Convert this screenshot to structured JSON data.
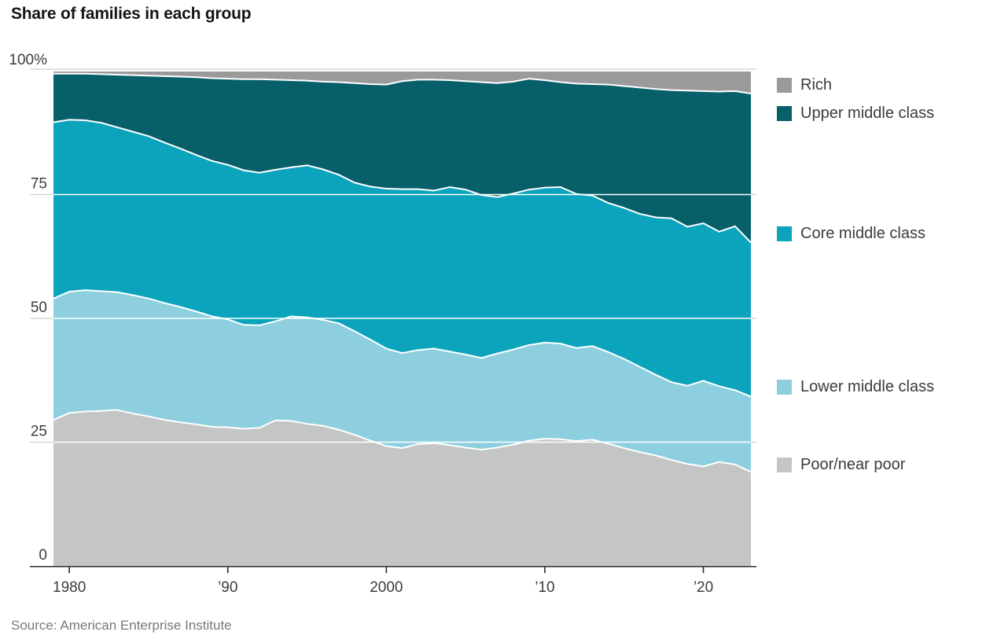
{
  "chart": {
    "title": "Share of families in each group",
    "source": "Source: American Enterprise Institute"
  },
  "chart_data": {
    "type": "area",
    "stacked": true,
    "title": "Share of families in each group",
    "xlabel": "",
    "ylabel": "",
    "unit": "percent of families",
    "ylim": [
      0,
      100
    ],
    "grid": true,
    "legend_position": "right",
    "x": [
      1979,
      1980,
      1981,
      1982,
      1983,
      1984,
      1985,
      1986,
      1987,
      1988,
      1989,
      1990,
      1991,
      1992,
      1993,
      1994,
      1995,
      1996,
      1997,
      1998,
      1999,
      2000,
      2001,
      2002,
      2003,
      2004,
      2005,
      2006,
      2007,
      2008,
      2009,
      2010,
      2011,
      2012,
      2013,
      2014,
      2015,
      2016,
      2017,
      2018,
      2019,
      2020,
      2021,
      2022,
      2023
    ],
    "series": [
      {
        "name": "Poor/near poor",
        "color": "#c4c5c5",
        "values": [
          29.5,
          30.9,
          31.2,
          31.3,
          31.5,
          30.8,
          30.2,
          29.5,
          29.0,
          28.6,
          28.1,
          28.0,
          27.7,
          27.9,
          29.4,
          29.3,
          28.7,
          28.3,
          27.5,
          26.5,
          25.3,
          24.2,
          23.8,
          24.6,
          24.8,
          24.4,
          23.9,
          23.5,
          23.9,
          24.5,
          25.3,
          25.7,
          25.6,
          25.2,
          25.5,
          24.7,
          23.8,
          23.0,
          22.3,
          21.4,
          20.6,
          20.1,
          21.0,
          20.5,
          19.0
        ]
      },
      {
        "name": "Lower middle class",
        "color": "#8dcfdf",
        "values": [
          24.5,
          24.5,
          24.5,
          24.2,
          23.8,
          23.9,
          23.8,
          23.6,
          23.3,
          22.8,
          22.3,
          21.8,
          21.0,
          20.7,
          20.0,
          21.1,
          21.5,
          21.4,
          21.5,
          20.9,
          20.4,
          19.7,
          19.2,
          19.0,
          19.1,
          18.9,
          18.8,
          18.5,
          19.0,
          19.2,
          19.3,
          19.4,
          19.3,
          18.8,
          18.9,
          18.5,
          18.0,
          17.2,
          16.3,
          15.7,
          15.8,
          17.3,
          15.3,
          15.0,
          15.2
        ]
      },
      {
        "name": "Core middle class",
        "color": "#0ba4bc",
        "values": [
          35.6,
          34.7,
          34.3,
          34.0,
          33.3,
          33.0,
          32.8,
          32.4,
          32.0,
          31.6,
          31.4,
          31.2,
          31.2,
          30.8,
          30.6,
          30.1,
          30.7,
          30.4,
          30.0,
          30.0,
          30.9,
          32.3,
          33.1,
          32.5,
          31.9,
          33.2,
          33.3,
          32.9,
          31.6,
          31.5,
          31.4,
          31.3,
          31.6,
          31.1,
          30.4,
          30.1,
          30.5,
          30.9,
          31.8,
          33.1,
          32.1,
          31.8,
          31.2,
          33.1,
          31.1
        ]
      },
      {
        "name": "Upper middle class",
        "color": "#075f69",
        "values": [
          9.8,
          9.3,
          9.4,
          9.8,
          10.6,
          11.4,
          12.2,
          13.4,
          14.5,
          15.7,
          16.7,
          17.4,
          18.4,
          18.9,
          18.2,
          17.6,
          17.1,
          17.7,
          18.7,
          20.1,
          20.7,
          21.0,
          21.8,
          22.1,
          22.4,
          21.6,
          21.9,
          22.8,
          23.0,
          22.6,
          22.4,
          21.7,
          21.2,
          22.3,
          22.5,
          23.9,
          24.6,
          25.5,
          25.9,
          25.9,
          27.5,
          26.7,
          28.3,
          27.3,
          30.1
        ]
      },
      {
        "name": "Rich",
        "color": "#9a9a9a",
        "values": [
          0.6,
          0.6,
          0.6,
          0.7,
          0.8,
          0.9,
          1.0,
          1.1,
          1.2,
          1.3,
          1.5,
          1.6,
          1.7,
          1.7,
          1.8,
          1.9,
          2.0,
          2.2,
          2.3,
          2.5,
          2.7,
          2.8,
          2.1,
          1.8,
          1.8,
          1.9,
          2.1,
          2.3,
          2.5,
          2.2,
          1.6,
          1.9,
          2.3,
          2.6,
          2.7,
          2.8,
          3.1,
          3.4,
          3.7,
          3.9,
          4.0,
          4.1,
          4.2,
          4.1,
          4.6
        ]
      }
    ],
    "y_ticks": [
      {
        "value": 100,
        "label": "100%"
      },
      {
        "value": 75,
        "label": "75"
      },
      {
        "value": 50,
        "label": "50"
      },
      {
        "value": 25,
        "label": "25"
      },
      {
        "value": 0,
        "label": "0"
      }
    ],
    "x_ticks": [
      {
        "value": 1980,
        "label": "1980"
      },
      {
        "value": 1990,
        "label": "’90"
      },
      {
        "value": 2000,
        "label": "2000"
      },
      {
        "value": 2010,
        "label": "’10"
      },
      {
        "value": 2020,
        "label": "’20"
      }
    ],
    "legend": [
      {
        "series_index": 4
      },
      {
        "series_index": 3
      },
      {
        "series_index": 2
      },
      {
        "series_index": 1
      },
      {
        "series_index": 0
      }
    ],
    "colors": {
      "background": "#ffffff",
      "gridline": "#cfcfcf",
      "grid_over_area": "#ffffff",
      "area_boundary": "#ffffff",
      "axis_line": "#2a2a2a",
      "tick_label": "#3c3c3c",
      "title": "#141414",
      "legend_text": "#3b3b3b",
      "source": "#787878"
    }
  }
}
